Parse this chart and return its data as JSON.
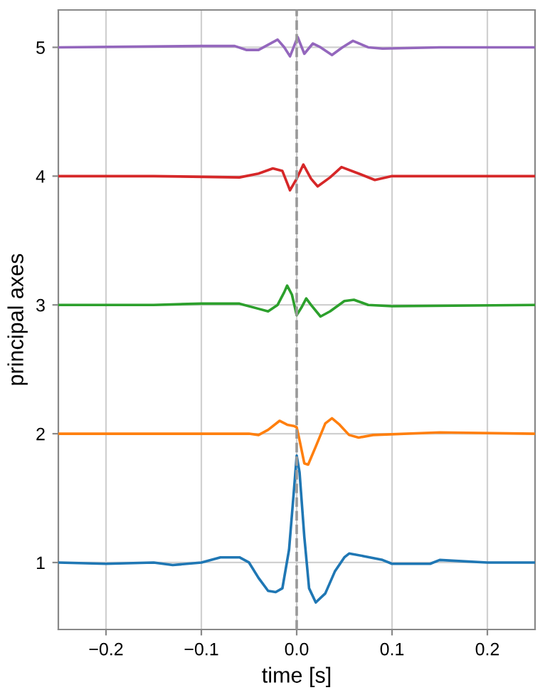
{
  "chart_data": {
    "type": "line",
    "xlabel": "time [s]",
    "ylabel": "principal axes",
    "xlim": [
      -0.25,
      0.25
    ],
    "xticks": [
      {
        "value": -0.2,
        "label": "−0.2"
      },
      {
        "value": -0.1,
        "label": "−0.1"
      },
      {
        "value": 0.0,
        "label": "0.0"
      },
      {
        "value": 0.1,
        "label": "0.1"
      },
      {
        "value": 0.2,
        "label": "0.2"
      }
    ],
    "ylim": [
      0.48,
      5.29
    ],
    "yticks": [
      1,
      2,
      3,
      4,
      5
    ],
    "grid": true,
    "line_style": "solid",
    "marker": "none",
    "ref_lines": [
      {
        "axis": "x",
        "value": 0,
        "color": "#999999",
        "line_style": "dashed"
      }
    ],
    "series": [
      {
        "color": "#1f77b4",
        "x": [
          -0.25,
          -0.2,
          -0.15,
          -0.13,
          -0.1,
          -0.08,
          -0.06,
          -0.05,
          -0.04,
          -0.03,
          -0.022,
          -0.015,
          -0.008,
          -0.003,
          0.0,
          0.003,
          0.008,
          0.013,
          0.02,
          0.03,
          0.04,
          0.05,
          0.055,
          0.07,
          0.09,
          0.1,
          0.14,
          0.15,
          0.2,
          0.25
        ],
        "values": [
          1.0,
          0.99,
          1.0,
          0.98,
          1.0,
          1.04,
          1.04,
          1.0,
          0.88,
          0.78,
          0.77,
          0.8,
          1.1,
          1.55,
          1.83,
          1.7,
          1.2,
          0.8,
          0.69,
          0.76,
          0.93,
          1.04,
          1.07,
          1.05,
          1.02,
          0.99,
          0.99,
          1.02,
          1.0,
          1.0
        ]
      },
      {
        "color": "#ff7f0e",
        "x": [
          -0.25,
          -0.15,
          -0.05,
          -0.04,
          -0.03,
          -0.018,
          -0.01,
          -0.003,
          0.0,
          0.003,
          0.008,
          0.012,
          0.02,
          0.03,
          0.037,
          0.045,
          0.055,
          0.065,
          0.08,
          0.15,
          0.25
        ],
        "values": [
          2.0,
          2.0,
          2.0,
          1.99,
          2.03,
          2.1,
          2.07,
          2.06,
          2.05,
          1.95,
          1.77,
          1.76,
          1.9,
          2.08,
          2.12,
          2.07,
          1.99,
          1.97,
          1.99,
          2.01,
          2.0
        ]
      },
      {
        "color": "#2ca02c",
        "x": [
          -0.25,
          -0.15,
          -0.1,
          -0.06,
          -0.04,
          -0.03,
          -0.02,
          -0.013,
          -0.01,
          -0.005,
          0.0,
          0.005,
          0.01,
          0.015,
          0.025,
          0.035,
          0.05,
          0.06,
          0.075,
          0.1,
          0.25
        ],
        "values": [
          3.0,
          3.0,
          3.01,
          3.01,
          2.97,
          2.95,
          3.0,
          3.1,
          3.15,
          3.08,
          2.92,
          2.98,
          3.05,
          3.0,
          2.91,
          2.95,
          3.03,
          3.04,
          3.0,
          2.99,
          3.0
        ]
      },
      {
        "color": "#d62728",
        "x": [
          -0.25,
          -0.15,
          -0.06,
          -0.04,
          -0.025,
          -0.015,
          -0.007,
          0.0,
          0.007,
          0.015,
          0.022,
          0.035,
          0.047,
          0.065,
          0.082,
          0.1,
          0.25
        ],
        "values": [
          4.0,
          4.0,
          3.99,
          4.02,
          4.06,
          4.04,
          3.89,
          3.98,
          4.09,
          3.98,
          3.92,
          3.99,
          4.07,
          4.02,
          3.97,
          4.0,
          4.0
        ]
      },
      {
        "color": "#9467bd",
        "x": [
          -0.25,
          -0.1,
          -0.065,
          -0.053,
          -0.04,
          -0.02,
          -0.013,
          -0.007,
          0.001,
          0.008,
          0.017,
          0.025,
          0.037,
          0.048,
          0.059,
          0.075,
          0.09,
          0.15,
          0.25
        ],
        "values": [
          5.0,
          5.01,
          5.01,
          4.98,
          4.98,
          5.06,
          5.0,
          4.93,
          5.08,
          4.95,
          5.03,
          5.0,
          4.94,
          5.0,
          5.05,
          5.0,
          4.99,
          5.0,
          5.0
        ]
      }
    ]
  }
}
